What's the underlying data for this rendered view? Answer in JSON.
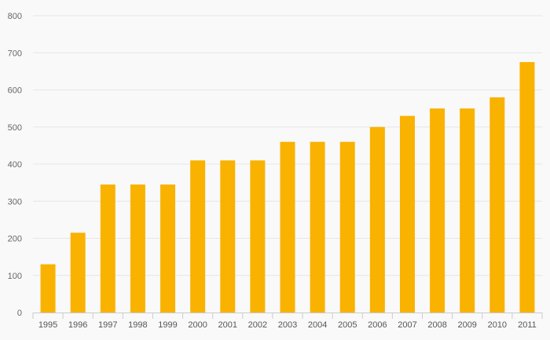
{
  "chart_data": {
    "type": "bar",
    "title": "",
    "xlabel": "",
    "ylabel": "",
    "categories": [
      "1995",
      "1996",
      "1997",
      "1998",
      "1999",
      "2000",
      "2001",
      "2002",
      "2003",
      "2004",
      "2005",
      "2006",
      "2007",
      "2008",
      "2009",
      "2010",
      "2011"
    ],
    "values": [
      130,
      215,
      345,
      345,
      345,
      410,
      410,
      410,
      460,
      460,
      460,
      500,
      530,
      550,
      550,
      580,
      675
    ],
    "ylim": [
      0,
      800
    ],
    "yticks": [
      "0",
      "100",
      "200",
      "300",
      "400",
      "500",
      "600",
      "700",
      "800"
    ],
    "grid": true,
    "colors": {
      "bar": "#f9b200",
      "grid": "#e6e6e6",
      "axis": "#cccccc"
    }
  }
}
